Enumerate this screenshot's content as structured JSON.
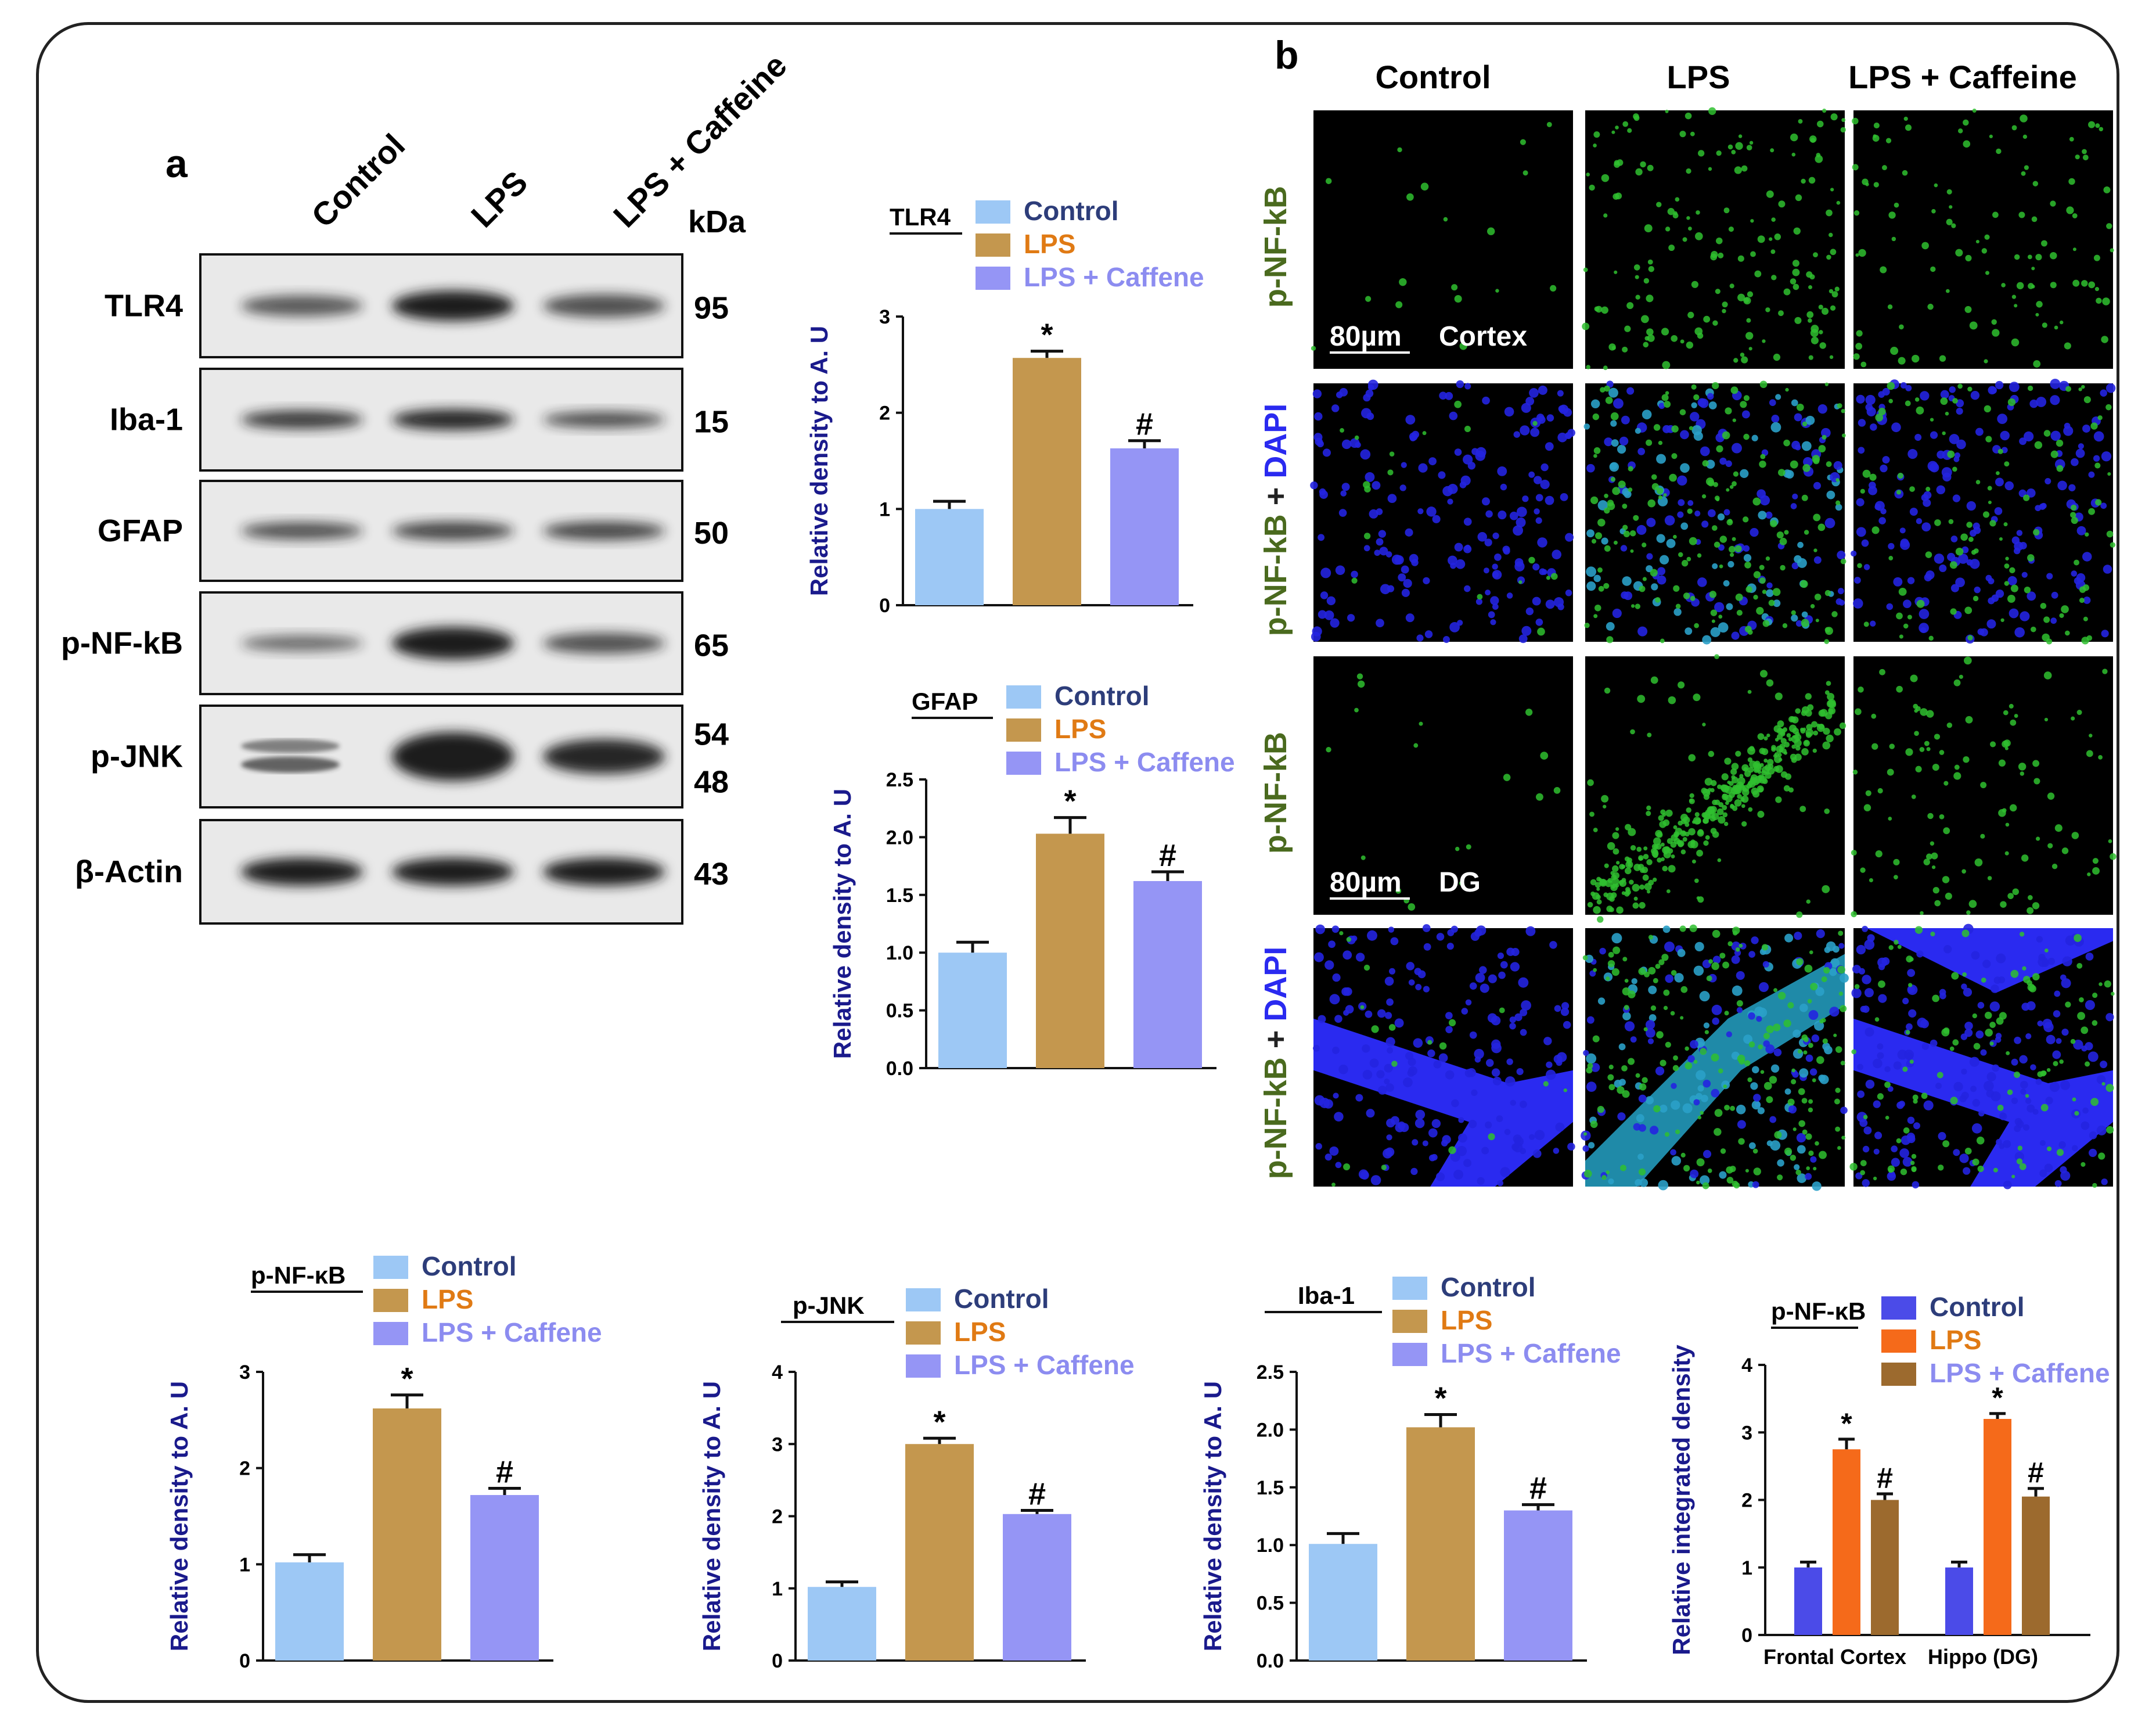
{
  "panel_labels": {
    "a": "a",
    "b": "b"
  },
  "colors": {
    "control": "#9dc8f5",
    "lps": "#c4974e",
    "lps_caffeine": "#9595f5",
    "ihc_control": "#4b4be8",
    "ihc_lps": "#f56a1a",
    "ihc_lps_caffeine": "#9c6a2e",
    "ylabel": "#1a1a8c",
    "legend_control": "#2d3d7a",
    "legend_lps": "#e07a14",
    "legend_lps_caffeine": "#8c8cf0",
    "ihc_row_label": "#4a6a1e",
    "dapi_blue": "#2a2af0"
  },
  "western_blot": {
    "lane_labels": [
      "Control",
      "LPS",
      "LPS + Caffeine"
    ],
    "kda_header": "kDa",
    "rows": [
      {
        "protein": "TLR4",
        "kda": [
          "95"
        ]
      },
      {
        "protein": "Iba-1",
        "kda": [
          "15"
        ]
      },
      {
        "protein": "GFAP",
        "kda": [
          "50"
        ]
      },
      {
        "protein": "p-NF-kB",
        "kda": [
          "65"
        ]
      },
      {
        "protein": "p-JNK",
        "kda": [
          "54",
          "48"
        ]
      },
      {
        "protein": "β-Actin",
        "kda": [
          "43"
        ]
      }
    ]
  },
  "immuno": {
    "col_labels": [
      "Control",
      "LPS",
      "LPS + Caffeine"
    ],
    "row_labels": [
      {
        "parts": [
          "p-NF-kB"
        ]
      },
      {
        "parts": [
          "p-NF-kB",
          " + ",
          "DAPI"
        ]
      },
      {
        "parts": [
          "p-NF-kB"
        ]
      },
      {
        "parts": [
          "p-NF-kB",
          " + ",
          "DAPI"
        ]
      }
    ],
    "scale_bar": "80µm",
    "region_labels": [
      "Cortex",
      "DG"
    ]
  },
  "chart_data": [
    {
      "type": "bar",
      "id": "tlr4",
      "title": "TLR4",
      "ylabel": "Relative density to A. U",
      "categories": [
        "Control",
        "LPS",
        "LPS + Caffene"
      ],
      "values": [
        1.0,
        2.57,
        1.63
      ],
      "errors": [
        0.08,
        0.07,
        0.08
      ],
      "markers": [
        "",
        "*",
        "#"
      ],
      "ylim": [
        0,
        3
      ],
      "yticks": [
        "0",
        "1",
        "2",
        "3"
      ],
      "ytick_values": [
        0,
        1,
        2,
        3
      ]
    },
    {
      "type": "bar",
      "id": "gfap",
      "title": "GFAP",
      "ylabel": "Relative density to A. U",
      "categories": [
        "Control",
        "LPS",
        "LPS + Caffene"
      ],
      "values": [
        1.0,
        2.03,
        1.62
      ],
      "errors": [
        0.09,
        0.14,
        0.08
      ],
      "markers": [
        "",
        "*",
        "#"
      ],
      "ylim": [
        0,
        2.5
      ],
      "yticks": [
        "0.0",
        "0.5",
        "1.0",
        "1.5",
        "2.0",
        "2.5"
      ],
      "ytick_values": [
        0,
        0.5,
        1,
        1.5,
        2,
        2.5
      ]
    },
    {
      "type": "bar",
      "id": "pnfkb",
      "title": "p-NF-κB",
      "ylabel": "Relative density to A. U",
      "categories": [
        "Control",
        "LPS",
        "LPS + Caffene"
      ],
      "values": [
        1.02,
        2.62,
        1.72
      ],
      "errors": [
        0.08,
        0.14,
        0.07
      ],
      "markers": [
        "",
        "*",
        "#"
      ],
      "ylim": [
        0,
        3
      ],
      "yticks": [
        "0",
        "1",
        "2",
        "3"
      ],
      "ytick_values": [
        0,
        1,
        2,
        3
      ]
    },
    {
      "type": "bar",
      "id": "pjnk",
      "title": "p-JNK",
      "ylabel": "Relative density to A. U",
      "categories": [
        "Control",
        "LPS",
        "LPS + Caffene"
      ],
      "values": [
        1.02,
        3.0,
        2.03
      ],
      "errors": [
        0.07,
        0.08,
        0.05
      ],
      "markers": [
        "",
        "*",
        "#"
      ],
      "ylim": [
        0,
        4
      ],
      "yticks": [
        "0",
        "1",
        "2",
        "3",
        "4"
      ],
      "ytick_values": [
        0,
        1,
        2,
        3,
        4
      ]
    },
    {
      "type": "bar",
      "id": "iba1",
      "title": "Iba-1",
      "ylabel": "Relative density to A. U",
      "categories": [
        "Control",
        "LPS",
        "LPS + Caffene"
      ],
      "values": [
        1.01,
        2.02,
        1.3
      ],
      "errors": [
        0.09,
        0.11,
        0.05
      ],
      "markers": [
        "",
        "*",
        "#"
      ],
      "ylim": [
        0,
        2.5
      ],
      "yticks": [
        "0.0",
        "0.5",
        "1.0",
        "1.5",
        "2.0",
        "2.5"
      ],
      "ytick_values": [
        0,
        0.5,
        1,
        1.5,
        2,
        2.5
      ]
    },
    {
      "type": "bar",
      "id": "ihc",
      "title": "p-NF-κB",
      "ylabel": "Relative integrated density",
      "categories": [
        "Frontal Cortex",
        "Hippo (DG)"
      ],
      "legend": [
        "Control",
        "LPS",
        "LPS + Caffene"
      ],
      "series": [
        {
          "name": "Control",
          "values": [
            1.0,
            1.0
          ],
          "errors": [
            0.08,
            0.08
          ],
          "markers": [
            "",
            ""
          ]
        },
        {
          "name": "LPS",
          "values": [
            2.75,
            3.2
          ],
          "errors": [
            0.15,
            0.08
          ],
          "markers": [
            "*",
            "*"
          ]
        },
        {
          "name": "LPS + Caffene",
          "values": [
            2.0,
            2.05
          ],
          "errors": [
            0.09,
            0.12
          ],
          "markers": [
            "#",
            "#"
          ]
        }
      ],
      "ylim": [
        0,
        4
      ],
      "yticks": [
        "0",
        "1",
        "2",
        "3",
        "4"
      ],
      "ytick_values": [
        0,
        1,
        2,
        3,
        4
      ]
    }
  ]
}
